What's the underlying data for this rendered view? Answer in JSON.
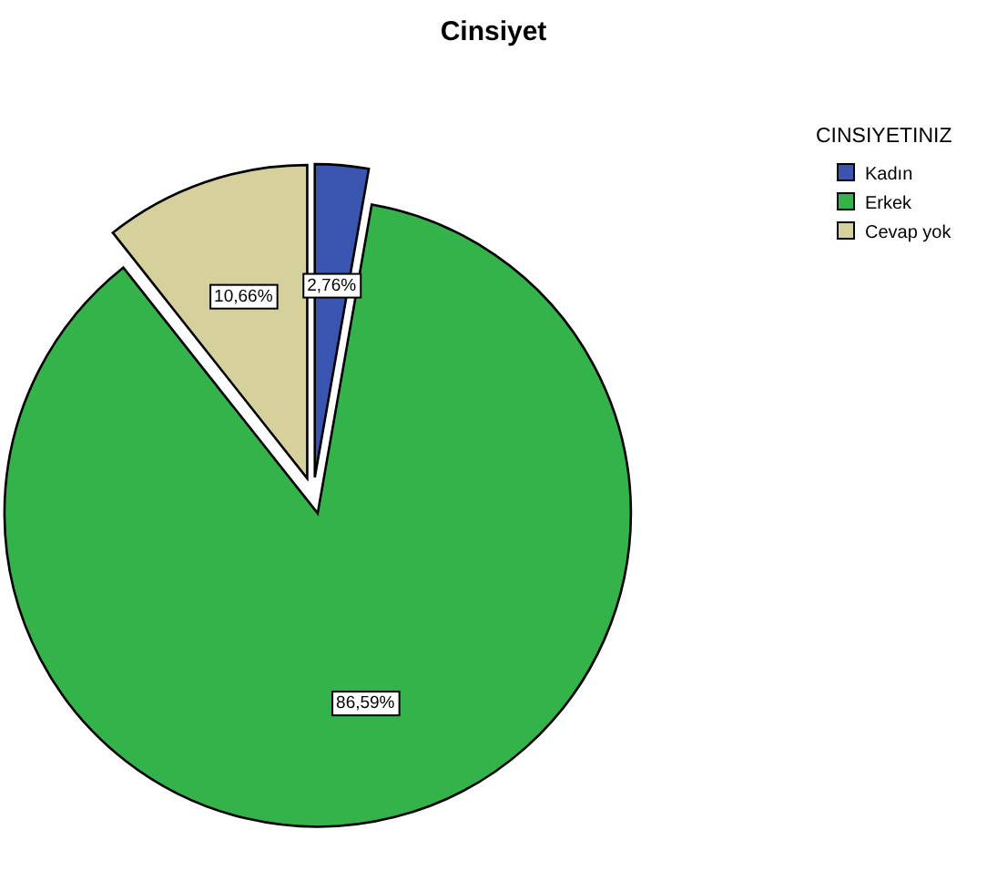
{
  "chart_data": {
    "type": "pie",
    "title": "Cinsiyet",
    "legend_title": "CINSIYETINIZ",
    "legend": "top right",
    "categories": [
      "Kadın",
      "Erkek",
      "Cevap yok"
    ],
    "values": [
      2.76,
      86.59,
      10.66
    ],
    "value_labels": [
      "2,76%",
      "86,59%",
      "10,66%"
    ],
    "colors": [
      "#3a55b0",
      "#33b34a",
      "#d5d09c"
    ]
  }
}
